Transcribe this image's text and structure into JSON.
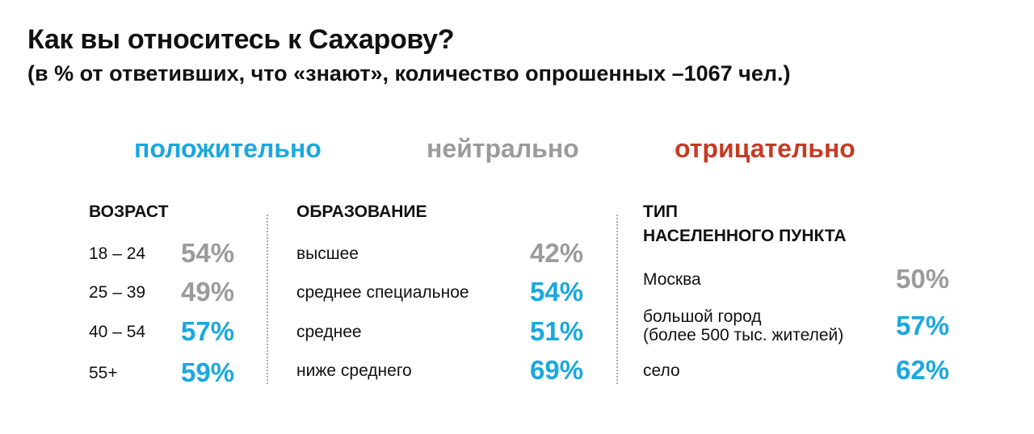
{
  "chart_data": {
    "type": "table",
    "title": "Как вы относитесь к Сахарову?",
    "subtitle": "(в % от ответивших, что «знают», количество опрошенных –1067 чел.)",
    "legend": [
      {
        "key": "positive",
        "label": "положительно",
        "color": "#1aa8de"
      },
      {
        "key": "neutral",
        "label": "нейтрально",
        "color": "#9b9b9b"
      },
      {
        "key": "negative",
        "label": "отрицательно",
        "color": "#c53b25"
      }
    ],
    "groups": [
      {
        "title": "ВОЗРАСТ",
        "rows": [
          {
            "label": "18 – 24",
            "value": 54,
            "display": "54%",
            "category": "neutral"
          },
          {
            "label": "25 – 39",
            "value": 49,
            "display": "49%",
            "category": "neutral"
          },
          {
            "label": "40 – 54",
            "value": 57,
            "display": "57%",
            "category": "positive"
          },
          {
            "label": "55+",
            "value": 59,
            "display": "59%",
            "category": "positive"
          }
        ]
      },
      {
        "title": "ОБРАЗОВАНИЕ",
        "rows": [
          {
            "label": "высшее",
            "value": 42,
            "display": "42%",
            "category": "neutral"
          },
          {
            "label": "среднее специальное",
            "value": 54,
            "display": "54%",
            "category": "positive"
          },
          {
            "label": "среднее",
            "value": 51,
            "display": "51%",
            "category": "positive"
          },
          {
            "label": "ниже среднего",
            "value": 69,
            "display": "69%",
            "category": "positive"
          }
        ]
      },
      {
        "title": "ТИП\nНАСЕЛЕННОГО ПУНКТА",
        "rows": [
          {
            "label": "Москва",
            "value": 50,
            "display": "50%",
            "category": "neutral"
          },
          {
            "label": "большой город\n(более 500 тыс. жителей)",
            "value": 57,
            "display": "57%",
            "category": "positive"
          },
          {
            "label": "село",
            "value": 62,
            "display": "62%",
            "category": "positive"
          }
        ]
      }
    ]
  }
}
